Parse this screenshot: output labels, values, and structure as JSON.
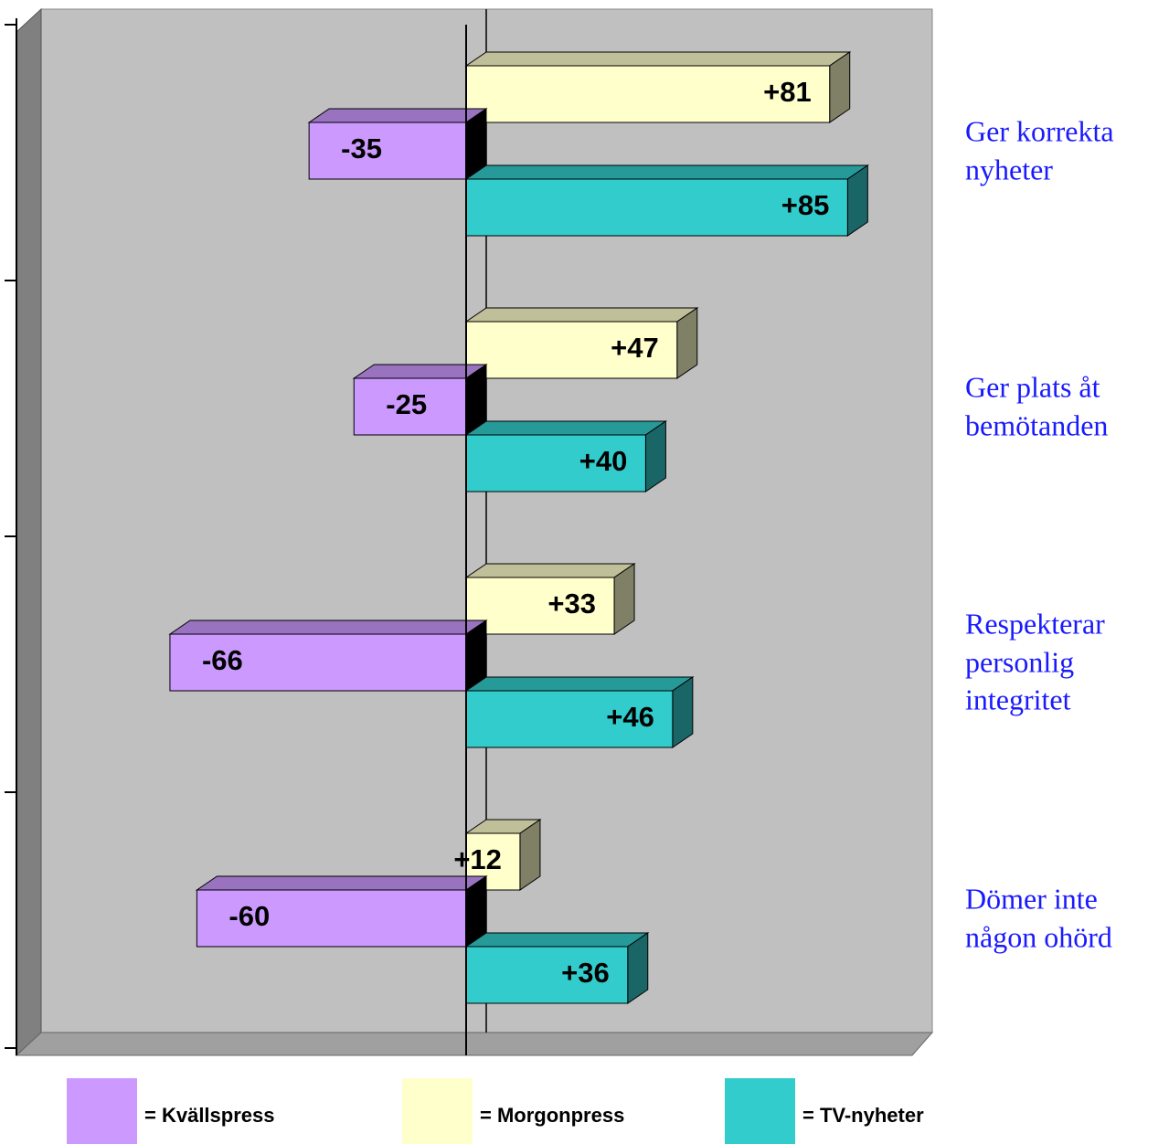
{
  "chart_data": {
    "type": "bar",
    "orientation": "horizontal",
    "categories": [
      "Ger korrekta nyheter",
      "Ger plats åt bemötanden",
      "Respekterar personlig integritet",
      "Dömer inte någon ohörd"
    ],
    "series": [
      {
        "name": "= Morgonpress",
        "color": "#ffffcc",
        "values": [
          81,
          47,
          33,
          12
        ],
        "value_labels": [
          "+81",
          "+47",
          "+33",
          "+12"
        ]
      },
      {
        "name": "= Kvällspress",
        "color": "#cc99ff",
        "values": [
          -35,
          -25,
          -66,
          -60
        ],
        "value_labels": [
          "-35",
          "-25",
          "-66",
          "-60"
        ]
      },
      {
        "name": "= TV-nyheter",
        "color": "#33cccc",
        "values": [
          85,
          40,
          46,
          36
        ],
        "value_labels": [
          "+85",
          "+40",
          "+46",
          "+36"
        ]
      }
    ],
    "legend_order": [
      1,
      0,
      2
    ],
    "xlim": [
      -100,
      100
    ]
  }
}
